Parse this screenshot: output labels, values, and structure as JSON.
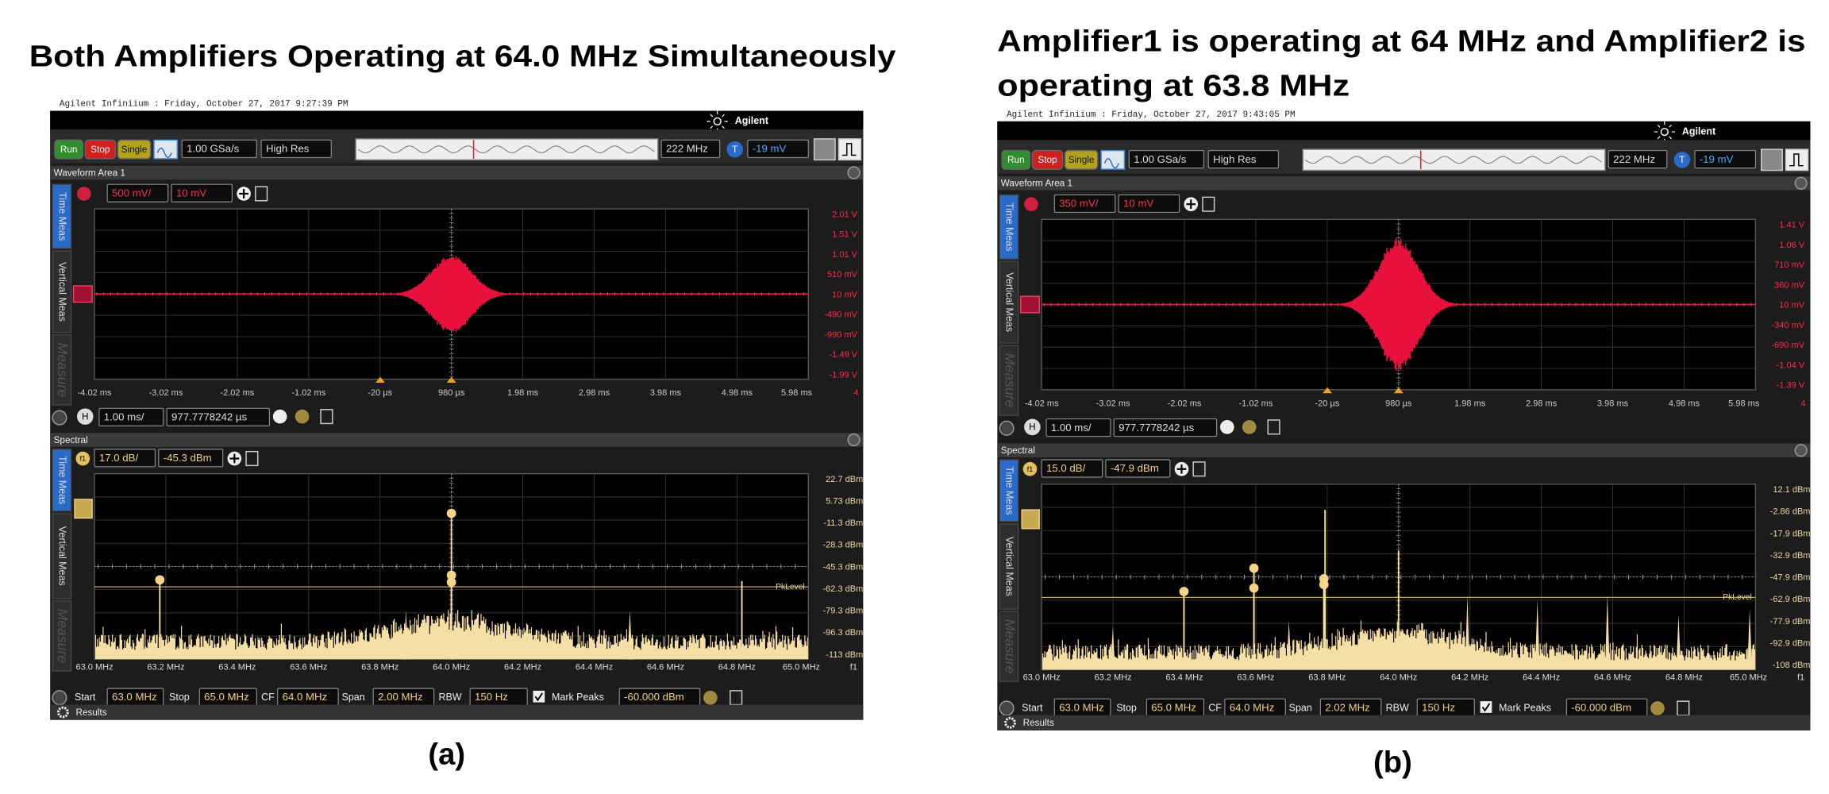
{
  "panels": [
    {
      "title_lines": [
        "Both Amplifiers Operating at 64.0 MHz Simultaneously"
      ],
      "caption": "(a)",
      "header": "Agilent Infiniium : Friday, October 27, 2017 9:27:39 PM",
      "brand": "Agilent",
      "toolbar": {
        "run": "Run",
        "stop": "Stop",
        "single": "Single",
        "sample_rate": "1.00 GSa/s",
        "mode": "High Res",
        "bandwidth": "222 MHz",
        "trigger_badge": "T",
        "trigger_level": "-19 mV"
      },
      "waveform_area": {
        "label": "Waveform Area 1",
        "tabs": [
          "Time Meas",
          "Vertical Meas",
          "Measure"
        ],
        "scale": "500 mV/",
        "offset": "10 mV",
        "y_labels": [
          "2.01 V",
          "1.51 V",
          "1.01 V",
          "510 mV",
          "10 mV",
          "-490 mV",
          "-990 mV",
          "-1.49 V",
          "-1.99 V"
        ],
        "x_labels": [
          "-4.02 ms",
          "-3.02 ms",
          "-2.02 ms",
          "-1.02 ms",
          "-20 µs",
          "980 µs",
          "1.98 ms",
          "2.98 ms",
          "3.98 ms",
          "4.98 ms",
          "5.98 ms"
        ],
        "channel": "4",
        "h_badge": "H",
        "timebase": "1.00 ms/",
        "delay": "977.7778242 µs"
      },
      "spectral": {
        "label": "Spectral",
        "tabs": [
          "Time Meas",
          "Vertical Meas",
          "Measure"
        ],
        "badge": "f1",
        "scale": "17.0 dB/",
        "offset": "-45.3 dBm",
        "y_labels": [
          "22.7 dBm",
          "5.73 dBm",
          "-11.3 dBm",
          "-28.3 dBm",
          "-45.3 dBm",
          "-62.3 dBm",
          "-79.3 dBm",
          "-96.3 dBm",
          "-113 dBm"
        ],
        "pk_level": "PkLevel",
        "x_labels": [
          "63.0 MHz",
          "63.2 MHz",
          "63.4 MHz",
          "63.6 MHz",
          "63.8 MHz",
          "64.0 MHz",
          "64.2 MHz",
          "64.4 MHz",
          "64.6 MHz",
          "64.8 MHz",
          "65.0 MHz"
        ],
        "x_unit": "f1",
        "start_label": "Start",
        "start": "63.0 MHz",
        "stop_label": "Stop",
        "stop": "65.0 MHz",
        "cf_label": "CF",
        "cf": "64.0 MHz",
        "span_label": "Span",
        "span": "2.00 MHz",
        "rbw_label": "RBW",
        "rbw": "150 Hz",
        "mark_peaks": "Mark Peaks",
        "threshold": "-60.000 dBm"
      },
      "results": "Results"
    },
    {
      "title_lines": [
        "Amplifier1 is operating at 64 MHz and Amplifier2 is",
        "operating at 63.8 MHz"
      ],
      "caption": "(b)",
      "header": "Agilent Infiniium : Friday, October 27, 2017 9:43:05 PM",
      "brand": "Agilent",
      "toolbar": {
        "run": "Run",
        "stop": "Stop",
        "single": "Single",
        "sample_rate": "1.00 GSa/s",
        "mode": "High Res",
        "bandwidth": "222 MHz",
        "trigger_badge": "T",
        "trigger_level": "-19 mV"
      },
      "waveform_area": {
        "label": "Waveform Area 1",
        "tabs": [
          "Time Meas",
          "Vertical Meas",
          "Measure"
        ],
        "scale": "350 mV/",
        "offset": "10 mV",
        "y_labels": [
          "1.41 V",
          "1.06 V",
          "710 mV",
          "360 mV",
          "10 mV",
          "-340 mV",
          "-690 mV",
          "-1.04 V",
          "-1.39 V"
        ],
        "x_labels": [
          "-4.02 ms",
          "-3.02 ms",
          "-2.02 ms",
          "-1.02 ms",
          "-20 µs",
          "980 µs",
          "1.98 ms",
          "2.98 ms",
          "3.98 ms",
          "4.98 ms",
          "5.98 ms"
        ],
        "channel": "4",
        "h_badge": "H",
        "timebase": "1.00 ms/",
        "delay": "977.7778242 µs"
      },
      "spectral": {
        "label": "Spectral",
        "tabs": [
          "Time Meas",
          "Vertical Meas",
          "Measure"
        ],
        "badge": "f1",
        "scale": "15.0 dB/",
        "offset": "-47.9 dBm",
        "y_labels": [
          "12.1 dBm",
          "-2.86 dBm",
          "-17.9 dBm",
          "-32.9 dBm",
          "-47.9 dBm",
          "-62.9 dBm",
          "-77.9 dBm",
          "-92.9 dBm",
          "-108 dBm"
        ],
        "pk_level": "PkLevel",
        "x_labels": [
          "63.0 MHz",
          "63.2 MHz",
          "63.4 MHz",
          "63.6 MHz",
          "63.8 MHz",
          "64.0 MHz",
          "64.2 MHz",
          "64.4 MHz",
          "64.6 MHz",
          "64.8 MHz",
          "65.0 MHz"
        ],
        "x_unit": "f1",
        "start_label": "Start",
        "start": "63.0 MHz",
        "stop_label": "Stop",
        "stop": "65.0 MHz",
        "cf_label": "CF",
        "cf": "64.0 MHz",
        "span_label": "Span",
        "span": "2.02 MHz",
        "rbw_label": "RBW",
        "rbw": "150 Hz",
        "mark_peaks": "Mark Peaks",
        "threshold": "-60.000 dBm"
      },
      "results": "Results"
    }
  ]
}
